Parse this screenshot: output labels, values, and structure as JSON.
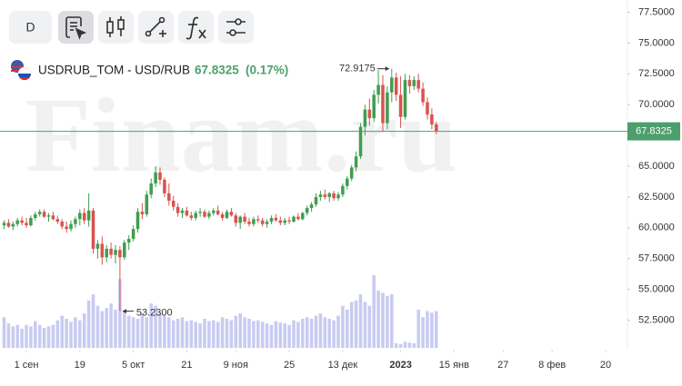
{
  "toolbar": {
    "interval": "D"
  },
  "chart_data": {
    "type": "candlestick",
    "title": "USDRUB_TOM - USD/RUB",
    "last": 67.8325,
    "change_label": "(0.17%)",
    "watermark": "Finam.ru",
    "up_color": "#3f9e4f",
    "down_color": "#d9534f",
    "volume_color": "#c8cbf1",
    "last_color": "#4c9f6c",
    "xlim": [
      -0.92,
      139.9
    ],
    "xticks": [
      {
        "value": 5,
        "label": "1 сен"
      },
      {
        "value": 17,
        "label": "19"
      },
      {
        "value": 29,
        "label": "5 окт"
      },
      {
        "value": 41,
        "label": "21"
      },
      {
        "value": 52,
        "label": "9 ноя"
      },
      {
        "value": 64,
        "label": "25"
      },
      {
        "value": 76,
        "label": "13 дек"
      },
      {
        "value": 89,
        "label": "2023"
      },
      {
        "value": 101,
        "label": "15 янв"
      },
      {
        "value": 112,
        "label": "27"
      },
      {
        "value": 123,
        "label": "8 фев"
      },
      {
        "value": 135,
        "label": "20"
      }
    ],
    "ylim": [
      50.1,
      78.5
    ],
    "yticks": [
      {
        "value": 77.5,
        "label": "77.5000"
      },
      {
        "value": 75,
        "label": "75.0000"
      },
      {
        "value": 72.5,
        "label": "72.5000"
      },
      {
        "value": 70,
        "label": "70.0000"
      },
      {
        "value": 67.5,
        "label": "67.5000"
      },
      {
        "value": 65,
        "label": "65.0000"
      },
      {
        "value": 62.5,
        "label": "62.5000"
      },
      {
        "value": 60,
        "label": "60.0000"
      },
      {
        "value": 57.5,
        "label": "57.5000"
      },
      {
        "value": 55,
        "label": "55.0000"
      },
      {
        "value": 52.5,
        "label": "52.5000"
      }
    ],
    "annotations": [
      {
        "index": 87,
        "value": 72.9175,
        "label": "72.9175"
      },
      {
        "index": 26,
        "value": 53.23,
        "label": "53.2300"
      }
    ],
    "candles": [
      [
        60.2,
        60.6,
        59.9,
        60.4
      ],
      [
        60.4,
        60.7,
        60.0,
        60.1
      ],
      [
        60.1,
        60.5,
        59.8,
        60.3
      ],
      [
        60.3,
        60.8,
        60.1,
        60.6
      ],
      [
        60.6,
        60.9,
        60.2,
        60.4
      ],
      [
        60.4,
        60.8,
        60.0,
        60.2
      ],
      [
        60.2,
        61.0,
        60.1,
        60.8
      ],
      [
        60.8,
        61.3,
        60.6,
        61.1
      ],
      [
        61.1,
        61.5,
        60.9,
        61.3
      ],
      [
        61.3,
        61.5,
        60.8,
        60.9
      ],
      [
        60.9,
        61.2,
        60.5,
        61.0
      ],
      [
        61.0,
        61.3,
        60.6,
        60.7
      ],
      [
        60.7,
        61.0,
        60.3,
        60.5
      ],
      [
        60.5,
        60.7,
        59.9,
        60.1
      ],
      [
        60.1,
        60.5,
        59.6,
        59.9
      ],
      [
        59.9,
        60.6,
        59.7,
        60.3
      ],
      [
        60.3,
        60.9,
        60.0,
        60.7
      ],
      [
        60.7,
        61.5,
        60.2,
        61.2
      ],
      [
        61.2,
        61.6,
        60.3,
        60.6
      ],
      [
        60.6,
        62.8,
        60.1,
        61.4
      ],
      [
        61.4,
        61.6,
        57.9,
        58.3
      ],
      [
        58.3,
        59.0,
        57.5,
        58.7
      ],
      [
        58.7,
        59.3,
        57.0,
        57.6
      ],
      [
        57.6,
        58.6,
        57.2,
        58.3
      ],
      [
        58.3,
        58.8,
        57.5,
        57.8
      ],
      [
        57.8,
        58.6,
        57.1,
        58.2
      ],
      [
        58.2,
        58.5,
        53.23,
        57.6
      ],
      [
        57.6,
        59.0,
        57.4,
        58.8
      ],
      [
        58.8,
        59.4,
        58.2,
        59.1
      ],
      [
        59.1,
        60.2,
        58.9,
        59.9
      ],
      [
        59.9,
        61.6,
        59.6,
        61.3
      ],
      [
        61.3,
        62.0,
        60.7,
        61.1
      ],
      [
        61.1,
        63.0,
        60.9,
        62.7
      ],
      [
        62.7,
        64.0,
        62.4,
        63.6
      ],
      [
        63.6,
        65.0,
        63.3,
        64.5
      ],
      [
        64.5,
        64.9,
        63.5,
        63.9
      ],
      [
        63.9,
        64.1,
        62.5,
        62.8
      ],
      [
        62.8,
        63.6,
        61.8,
        62.2
      ],
      [
        62.2,
        62.6,
        61.4,
        61.7
      ],
      [
        61.7,
        62.0,
        60.9,
        61.2
      ],
      [
        61.2,
        61.6,
        60.8,
        61.4
      ],
      [
        61.4,
        61.7,
        60.9,
        61.0
      ],
      [
        61.0,
        61.3,
        60.6,
        60.8
      ],
      [
        60.8,
        61.4,
        60.6,
        61.2
      ],
      [
        61.2,
        61.6,
        60.9,
        61.3
      ],
      [
        61.3,
        61.5,
        60.8,
        60.9
      ],
      [
        60.9,
        61.4,
        60.7,
        61.2
      ],
      [
        61.2,
        61.6,
        61.0,
        61.4
      ],
      [
        61.4,
        61.8,
        61.0,
        61.1
      ],
      [
        61.1,
        61.3,
        60.6,
        60.8
      ],
      [
        60.8,
        61.5,
        60.7,
        61.3
      ],
      [
        61.3,
        61.6,
        60.9,
        61.0
      ],
      [
        61.0,
        61.2,
        60.1,
        60.4
      ],
      [
        60.4,
        61.0,
        59.9,
        60.9
      ],
      [
        60.9,
        61.2,
        60.3,
        60.5
      ],
      [
        60.5,
        60.8,
        60.1,
        60.3
      ],
      [
        60.3,
        60.9,
        60.1,
        60.7
      ],
      [
        60.7,
        61.0,
        60.4,
        60.6
      ],
      [
        60.6,
        60.8,
        60.1,
        60.3
      ],
      [
        60.3,
        60.7,
        60.0,
        60.5
      ],
      [
        60.5,
        61.0,
        60.3,
        60.8
      ],
      [
        60.8,
        61.1,
        60.5,
        60.6
      ],
      [
        60.6,
        60.9,
        60.2,
        60.4
      ],
      [
        60.4,
        60.8,
        60.2,
        60.6
      ],
      [
        60.6,
        60.9,
        60.3,
        60.5
      ],
      [
        60.5,
        61.0,
        60.4,
        60.9
      ],
      [
        60.9,
        61.2,
        60.6,
        60.7
      ],
      [
        60.7,
        61.3,
        60.6,
        61.2
      ],
      [
        61.2,
        61.8,
        61.0,
        61.6
      ],
      [
        61.6,
        62.1,
        61.3,
        61.9
      ],
      [
        61.9,
        62.8,
        61.7,
        62.5
      ],
      [
        62.5,
        63.0,
        62.2,
        62.7
      ],
      [
        62.7,
        63.1,
        62.3,
        62.5
      ],
      [
        62.5,
        62.9,
        62.1,
        62.8
      ],
      [
        62.8,
        63.0,
        62.2,
        62.4
      ],
      [
        62.4,
        62.9,
        62.2,
        62.7
      ],
      [
        62.7,
        63.6,
        62.5,
        63.4
      ],
      [
        63.4,
        64.2,
        63.1,
        64.0
      ],
      [
        64.0,
        65.1,
        63.8,
        64.9
      ],
      [
        64.9,
        66.2,
        64.6,
        65.8
      ],
      [
        65.8,
        68.5,
        65.6,
        68.2
      ],
      [
        68.2,
        70.0,
        67.5,
        69.6
      ],
      [
        69.6,
        70.5,
        68.3,
        68.9
      ],
      [
        68.9,
        71.2,
        68.6,
        70.8
      ],
      [
        70.8,
        72.8,
        70.1,
        71.6
      ],
      [
        71.6,
        72.4,
        67.8,
        68.5
      ],
      [
        68.5,
        71.5,
        68.0,
        71.0
      ],
      [
        71.0,
        72.9175,
        70.2,
        72.2
      ],
      [
        72.2,
        72.6,
        70.3,
        70.8
      ],
      [
        70.8,
        72.3,
        68.1,
        69.0
      ],
      [
        69.0,
        72.5,
        68.8,
        72.0
      ],
      [
        72.0,
        72.4,
        70.9,
        71.5
      ],
      [
        71.5,
        72.3,
        71.2,
        72.0
      ],
      [
        72.0,
        72.5,
        71.0,
        71.3
      ],
      [
        71.3,
        71.8,
        69.9,
        70.2
      ],
      [
        70.2,
        70.6,
        68.8,
        69.2
      ],
      [
        69.2,
        69.7,
        68.0,
        68.4
      ],
      [
        68.4,
        68.6,
        67.6,
        67.8325
      ]
    ],
    "volume": [
      40,
      32,
      28,
      30,
      25,
      30,
      28,
      35,
      30,
      26,
      28,
      30,
      36,
      42,
      38,
      34,
      40,
      36,
      45,
      62,
      70,
      55,
      48,
      52,
      58,
      50,
      90,
      48,
      42,
      40,
      38,
      45,
      40,
      58,
      55,
      45,
      42,
      40,
      36,
      38,
      40,
      35,
      36,
      34,
      32,
      38,
      35,
      36,
      34,
      40,
      38,
      36,
      42,
      45,
      40,
      38,
      35,
      36,
      34,
      32,
      30,
      35,
      33,
      32,
      30,
      36,
      34,
      38,
      40,
      38,
      42,
      45,
      40,
      38,
      36,
      42,
      55,
      50,
      60,
      62,
      70,
      60,
      55,
      95,
      75,
      72,
      68,
      70,
      6,
      5,
      8,
      7,
      6,
      50,
      40,
      48,
      46,
      48
    ]
  }
}
